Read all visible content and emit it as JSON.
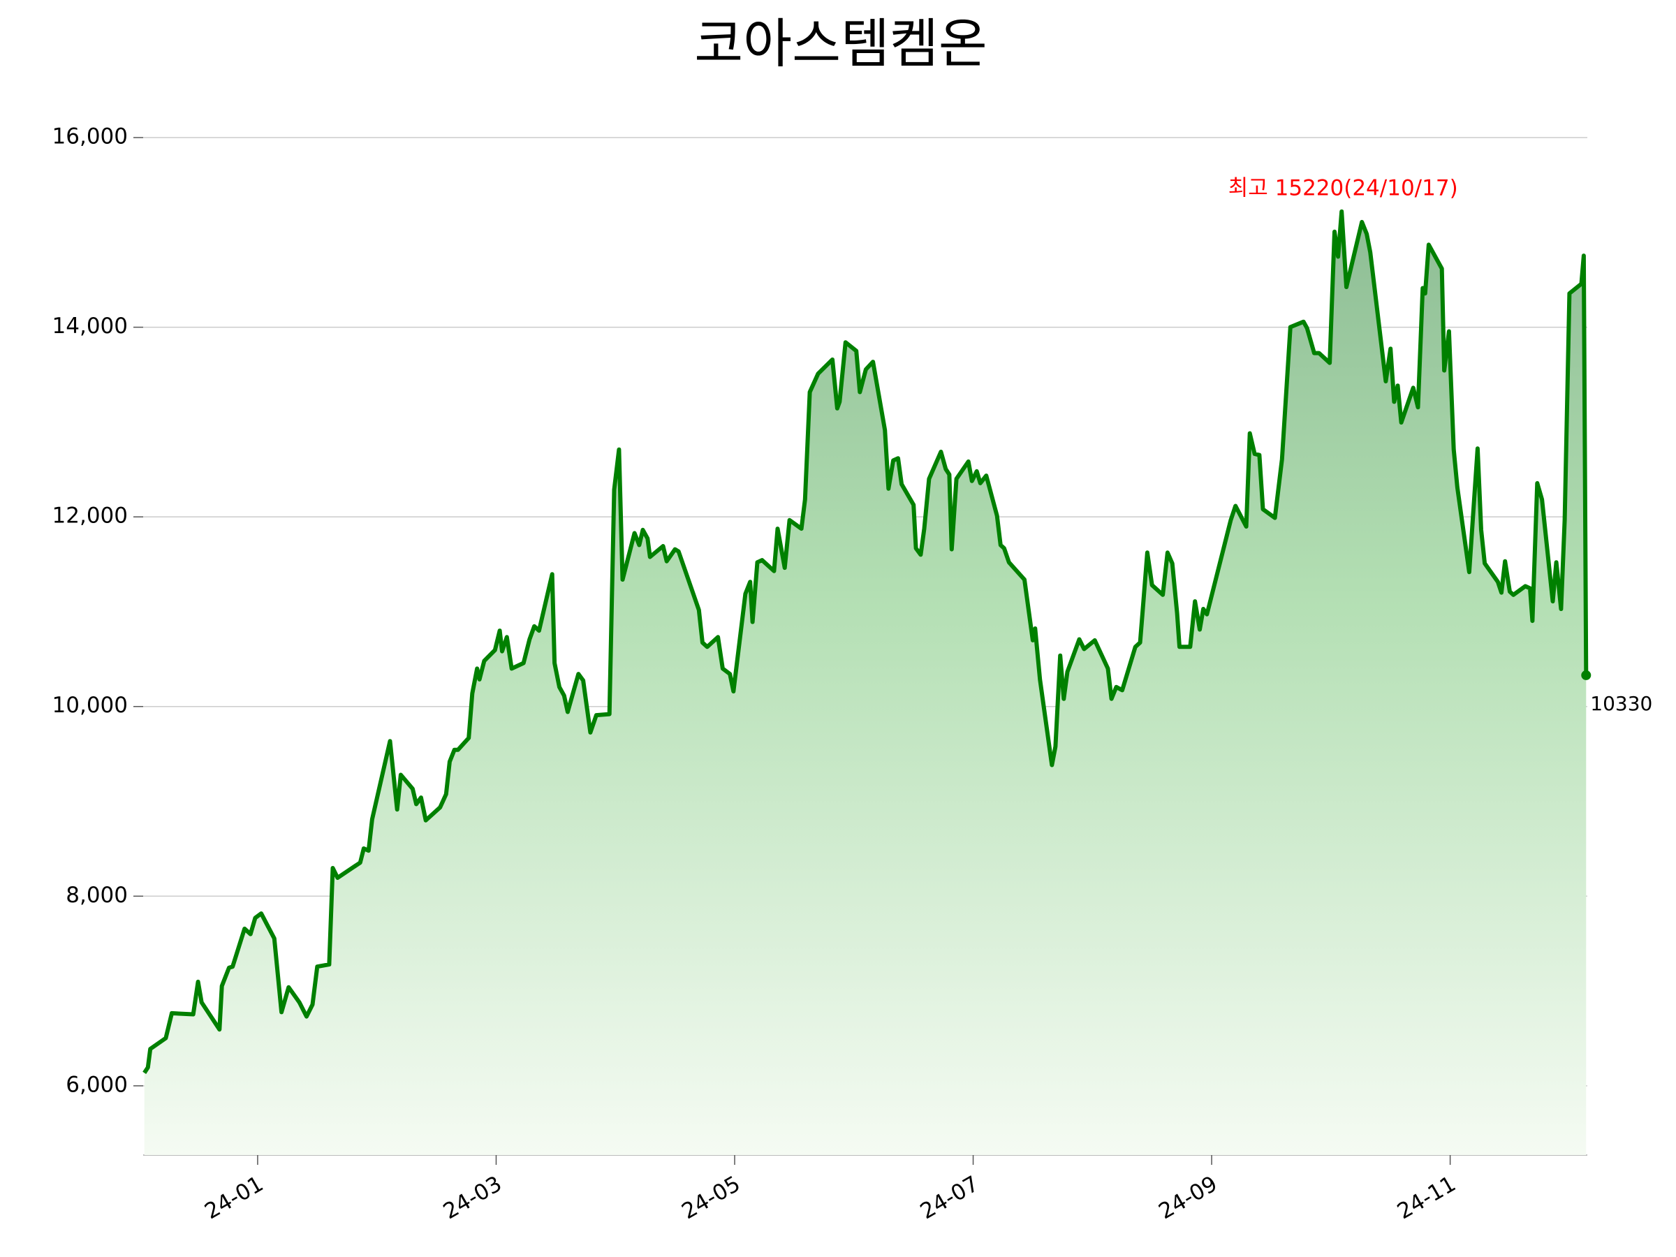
{
  "chart_data": {
    "type": "line",
    "title": "코아스템켐온",
    "x": [
      0.05,
      0.08,
      0.1,
      0.23,
      0.28,
      0.46,
      0.5,
      0.53,
      0.68,
      0.7,
      0.76,
      0.79,
      0.89,
      0.94,
      0.98,
      1.03,
      1.14,
      1.2,
      1.26,
      1.35,
      1.41,
      1.46,
      1.5,
      1.6,
      1.63,
      1.67,
      1.86,
      1.89,
      1.93,
      1.96,
      2.11,
      2.17,
      2.2,
      2.3,
      2.33,
      2.37,
      2.41,
      2.53,
      2.58,
      2.61,
      2.65,
      2.68,
      2.77,
      2.8,
      2.84,
      2.86,
      2.9,
      2.99,
      3.03,
      3.05,
      3.09,
      3.13,
      3.23,
      3.28,
      3.32,
      3.36,
      3.47,
      3.49,
      3.53,
      3.57,
      3.6,
      3.69,
      3.73,
      3.79,
      3.84,
      3.95,
      3.99,
      4.03,
      4.06,
      4.16,
      4.2,
      4.23,
      4.27,
      4.29,
      4.4,
      4.43,
      4.5,
      4.53,
      4.7,
      4.73,
      4.77,
      4.86,
      4.9,
      4.96,
      4.99,
      5.09,
      5.13,
      5.15,
      5.19,
      5.23,
      5.33,
      5.36,
      5.42,
      5.46,
      5.56,
      5.59,
      5.63,
      5.7,
      5.82,
      5.86,
      5.88,
      5.93,
      6.02,
      6.05,
      6.1,
      6.16,
      6.26,
      6.29,
      6.33,
      6.37,
      6.4,
      6.5,
      6.52,
      6.56,
      6.59,
      6.63,
      6.73,
      6.77,
      6.8,
      6.82,
      6.86,
      6.96,
      6.99,
      7.03,
      7.06,
      7.11,
      7.2,
      7.23,
      7.26,
      7.3,
      7.43,
      7.5,
      7.52,
      7.56,
      7.66,
      7.69,
      7.73,
      7.76,
      7.79,
      7.89,
      7.93,
      8.02,
      8.13,
      8.16,
      8.2,
      8.25,
      8.36,
      8.4,
      8.42,
      8.46,
      8.5,
      8.59,
      8.63,
      8.67,
      8.71,
      8.73,
      8.82,
      8.86,
      8.9,
      8.93,
      8.96,
      9.16,
      9.2,
      9.29,
      9.32,
      9.36,
      9.4,
      9.43,
      9.53,
      9.59,
      9.66,
      9.77,
      9.8,
      9.86,
      9.9,
      9.99,
      10.03,
      10.06,
      10.09,
      10.13,
      10.26,
      10.3,
      10.33,
      10.46,
      10.5,
      10.53,
      10.56,
      10.59,
      10.69,
      10.73,
      10.77,
      10.79,
      10.82,
      10.93,
      10.95,
      10.99,
      11.03,
      11.06,
      11.16,
      11.23,
      11.26,
      11.29,
      11.4,
      11.43,
      11.46,
      11.5,
      11.53,
      11.63,
      11.67,
      11.69,
      11.73,
      11.77,
      11.86,
      11.89,
      11.93,
      11.96,
      12.0,
      12.1,
      12.12,
      12.14
    ],
    "series": [
      {
        "color": "#008000",
        "values": [
          6137,
          6194,
          6389,
          6503,
          6766,
          6754,
          7097,
          6880,
          6594,
          7052,
          7246,
          7257,
          7657,
          7600,
          7771,
          7817,
          7554,
          6777,
          7040,
          6880,
          6731,
          6857,
          7257,
          7280,
          8297,
          8194,
          8354,
          8503,
          8480,
          8811,
          9635,
          8914,
          9280,
          9132,
          8971,
          9040,
          8800,
          8937,
          9075,
          9418,
          9543,
          9543,
          9669,
          10138,
          10400,
          10286,
          10481,
          10595,
          10800,
          10583,
          10732,
          10400,
          10458,
          10709,
          10846,
          10800,
          11395,
          10458,
          10206,
          10115,
          9943,
          10343,
          10275,
          9726,
          9909,
          9920,
          12287,
          12710,
          11338,
          11829,
          11703,
          11863,
          11772,
          11578,
          11692,
          11532,
          11658,
          11635,
          11018,
          10675,
          10629,
          10732,
          10400,
          10343,
          10160,
          11189,
          11315,
          10892,
          11521,
          11544,
          11429,
          11875,
          11463,
          11966,
          11875,
          12184,
          13316,
          13510,
          13659,
          13144,
          13213,
          13841,
          13750,
          13316,
          13555,
          13635,
          12915,
          12298,
          12595,
          12618,
          12344,
          12127,
          11669,
          11601,
          11875,
          12401,
          12687,
          12504,
          12447,
          11658,
          12401,
          12584,
          12378,
          12481,
          12355,
          12435,
          12012,
          11703,
          11669,
          11521,
          11338,
          10698,
          10823,
          10286,
          9383,
          9578,
          10538,
          10081,
          10366,
          10709,
          10606,
          10698,
          10400,
          10081,
          10206,
          10172,
          10629,
          10675,
          10983,
          11623,
          11280,
          11178,
          11623,
          11509,
          10983,
          10629,
          10629,
          11109,
          10812,
          11029,
          10972,
          11966,
          12115,
          11898,
          12881,
          12664,
          12652,
          12081,
          11989,
          12607,
          14001,
          14058,
          13990,
          13727,
          13727,
          13624,
          15007,
          14744,
          15220,
          14424,
          15110,
          14984,
          14790,
          13430,
          13773,
          13213,
          13384,
          12995,
          13361,
          13156,
          14413,
          14356,
          14870,
          14618,
          13544,
          13956,
          12710,
          12310,
          11418,
          12721,
          11863,
          11509,
          11315,
          11201,
          11532,
          11212,
          11178,
          11269,
          11246,
          10903,
          12355,
          12184,
          11109,
          11521,
          11029,
          11966,
          14356,
          14458,
          14755,
          10330
        ]
      }
    ],
    "max_label": "최고 15220(24/10/17)",
    "xlim": [
      0.04,
      12.15
    ],
    "xticks": [
      {
        "value": 1,
        "label": "24-01"
      },
      {
        "value": 3,
        "label": "24-03"
      },
      {
        "value": 5,
        "label": "24-05"
      },
      {
        "value": 7,
        "label": "24-07"
      },
      {
        "value": 9,
        "label": "24-09"
      },
      {
        "value": 11,
        "label": "24-11"
      }
    ],
    "ylim": [
      5270,
      16000
    ],
    "yticks": [
      {
        "value": 6000,
        "label": "6,000"
      },
      {
        "value": 8000,
        "label": "8,000"
      },
      {
        "value": 10000,
        "label": "10,000"
      },
      {
        "value": 12000,
        "label": "12,000"
      },
      {
        "value": 14000,
        "label": "14,000"
      },
      {
        "value": 16000,
        "label": "16,000"
      }
    ],
    "grid": true
  }
}
